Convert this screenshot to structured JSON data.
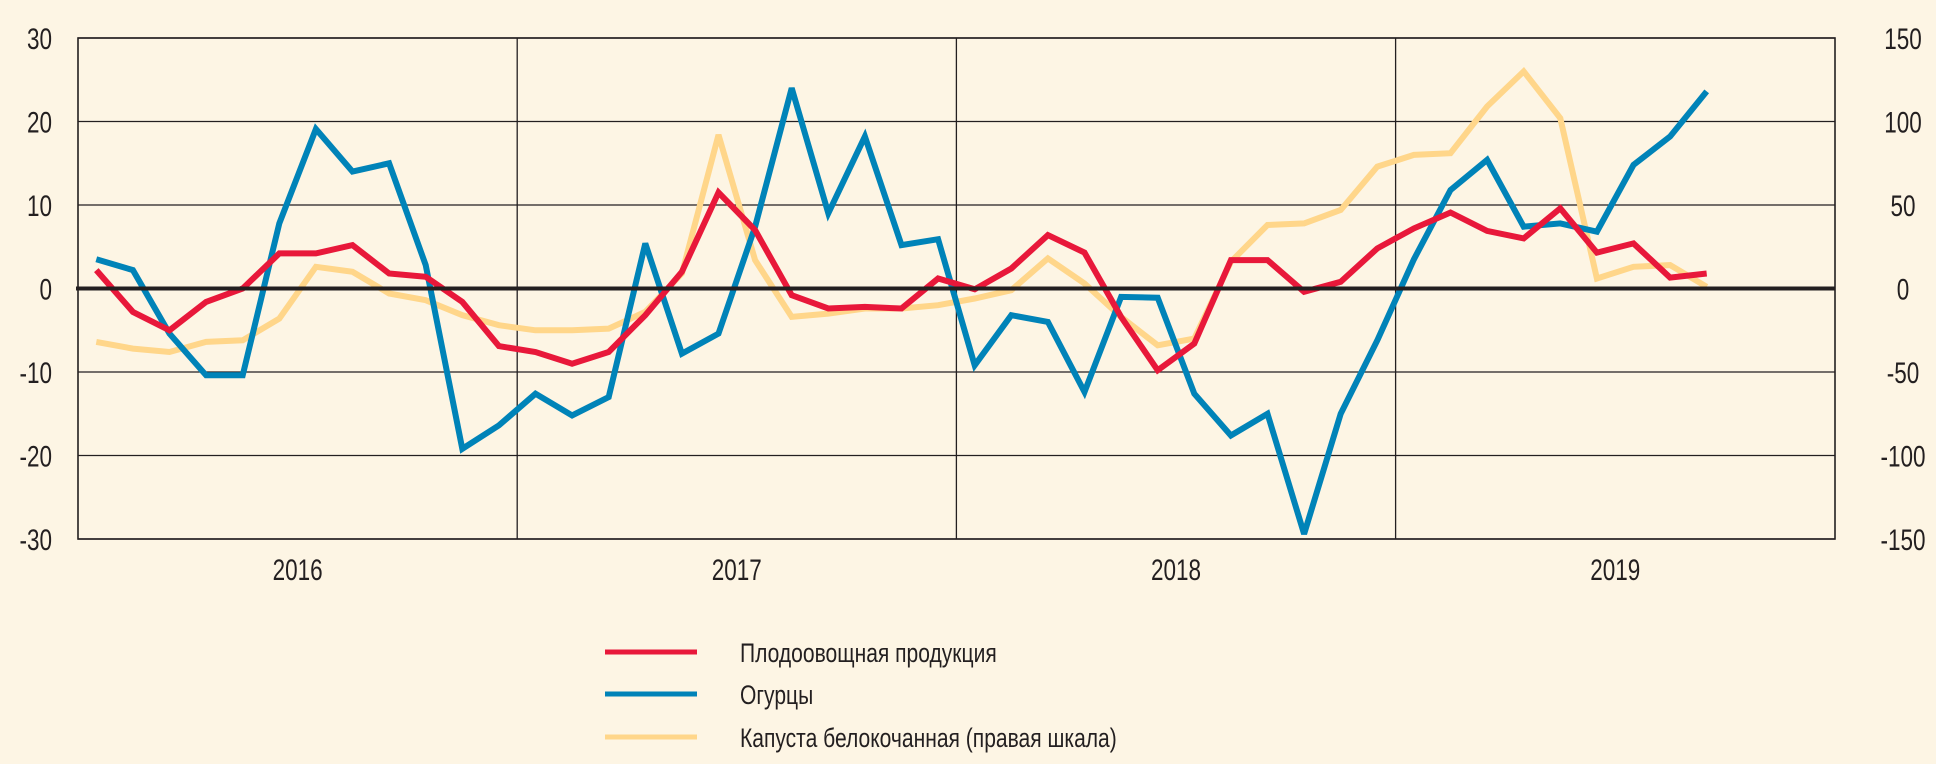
{
  "chart_data": {
    "type": "line",
    "title": "",
    "xlabel": "",
    "ylabel": "",
    "x_start": "2016-01",
    "x_frequency": "monthly",
    "x_tick_labels": [
      "2016",
      "2017",
      "2018",
      "2019"
    ],
    "ylim_left": [
      -30,
      30
    ],
    "yticks_left": [
      "30",
      "20",
      "10",
      "0",
      "-10",
      "-20",
      "-30"
    ],
    "ylim_right": [
      -150,
      150
    ],
    "yticks_right": [
      "150",
      "100",
      "50",
      "0",
      "-50",
      "-100",
      "-150"
    ],
    "grid": true,
    "legend_position": "bottom",
    "series": [
      {
        "name": "Плодоовощная продукция",
        "axis": "left",
        "color": "#e8183a",
        "values": [
          2.2,
          -2.8,
          -5.0,
          -1.6,
          0.0,
          4.2,
          4.2,
          5.2,
          1.8,
          1.4,
          -1.6,
          -6.9,
          -7.6,
          -9.0,
          -7.6,
          -3.2,
          2.0,
          11.5,
          7.0,
          -0.8,
          -2.4,
          -2.2,
          -2.4,
          1.2,
          -0.1,
          2.4,
          6.4,
          4.3,
          -3.4,
          -9.8,
          -6.6,
          3.4,
          3.4,
          -0.4,
          0.8,
          4.8,
          7.2,
          9.1,
          6.9,
          6.0,
          9.6,
          4.3,
          5.4,
          1.3,
          1.8
        ]
      },
      {
        "name": "Огурцы",
        "axis": "left",
        "color": "#0083b8",
        "values": [
          3.5,
          2.2,
          -5.4,
          -10.4,
          -10.4,
          7.8,
          19.1,
          14.0,
          15.0,
          2.8,
          -19.2,
          -16.4,
          -12.6,
          -15.2,
          -13.0,
          5.4,
          -7.8,
          -5.4,
          7.4,
          24.0,
          9.0,
          18.2,
          5.2,
          5.9,
          -9.2,
          -3.2,
          -4.0,
          -12.4,
          -1.0,
          -1.1,
          -12.6,
          -17.6,
          -15.0,
          -29.4,
          -15.0,
          -6.2,
          3.5,
          11.8,
          15.4,
          7.4,
          7.8,
          6.8,
          14.8,
          18.2,
          23.6
        ]
      },
      {
        "name": "Капуста белокочанная (правая шкала)",
        "axis": "right",
        "color": "#ffd68a",
        "values": [
          -32,
          -36,
          -38,
          -32,
          -31,
          -18,
          13,
          10,
          -3,
          -7,
          -16,
          -22,
          -25,
          -25,
          -24,
          -14,
          9,
          92,
          17,
          -17,
          -15,
          -12,
          -12,
          -10,
          -6,
          -1,
          18,
          3,
          -17,
          -34,
          -30,
          16,
          38,
          39,
          47,
          73,
          80,
          81,
          109,
          130,
          102,
          6,
          13,
          14,
          1
        ]
      }
    ]
  }
}
